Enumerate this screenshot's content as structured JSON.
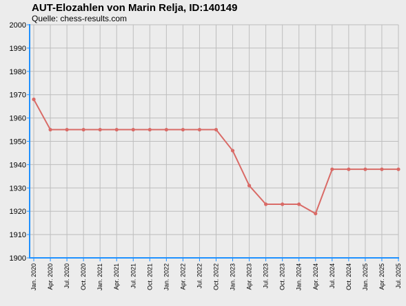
{
  "header": {
    "title": "AUT-Elozahlen von Marin Relja, ID:140149",
    "subtitle": "Quelle: chess-results.com"
  },
  "colors": {
    "line": "#d96a66",
    "grid": "#bdbdbd",
    "axis": "#1e90ff",
    "background": "#ececec"
  },
  "chart_data": {
    "type": "line",
    "title": "AUT-Elozahlen von Marin Relja, ID:140149",
    "subtitle": "Quelle: chess-results.com",
    "xlabel": "",
    "ylabel": "",
    "ylim": [
      1900,
      2000
    ],
    "yticks": [
      1900,
      1910,
      1920,
      1930,
      1940,
      1950,
      1960,
      1970,
      1980,
      1990,
      2000
    ],
    "grid": true,
    "categories": [
      "Jan. 2020",
      "Apr. 2020",
      "Jul. 2020",
      "Oct. 2020",
      "Jan. 2021",
      "Apr. 2021",
      "Jul. 2021",
      "Oct. 2021",
      "Jan. 2022",
      "Apr. 2022",
      "Jul. 2022",
      "Oct. 2022",
      "Jan. 2023",
      "Apr. 2023",
      "Jul. 2023",
      "Oct. 2023",
      "Jan. 2024",
      "Apr. 2024",
      "Jul. 2024",
      "Oct. 2024",
      "Jan. 2025",
      "Apr. 2025",
      "Jul. 2025"
    ],
    "series": [
      {
        "values": [
          1968,
          1955,
          1955,
          1955,
          1955,
          1955,
          1955,
          1955,
          1955,
          1955,
          1955,
          1955,
          1946,
          1931,
          1923,
          1923,
          1923,
          1919,
          1938,
          1938,
          1938,
          1938,
          1938
        ]
      }
    ]
  }
}
